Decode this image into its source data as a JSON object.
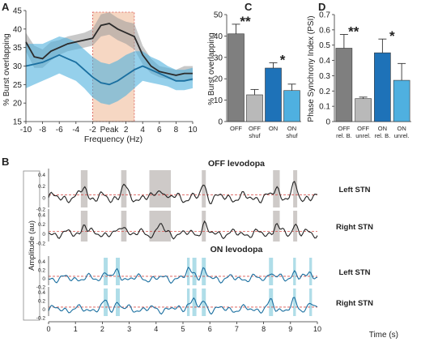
{
  "panels": {
    "A": "A",
    "B": "B",
    "C": "C",
    "D": "D"
  },
  "chart_data": [
    {
      "id": "A",
      "type": "line",
      "xlabel": "Frequency (Hz)",
      "ylabel": "% Burst overlapping",
      "xlim": [
        -10,
        10
      ],
      "ylim": [
        15,
        45
      ],
      "xticks": [
        "-10",
        "-8",
        "-6",
        "-4",
        "-2",
        "Peak",
        "2",
        "4",
        "6",
        "8",
        "10"
      ],
      "yticks": [
        "15",
        "20",
        "25",
        "30",
        "35",
        "40",
        "45"
      ],
      "highlight": {
        "x0": -2,
        "x1": 3,
        "color": "#f6d7c3"
      },
      "series": [
        {
          "color": "#2b2b2b",
          "band": "#9a9a9a",
          "x": [
            -10,
            -9,
            -8,
            -7,
            -6,
            -5,
            -4,
            -3,
            -2,
            -1,
            0,
            1,
            2,
            3,
            4,
            5,
            6,
            7,
            8,
            9,
            10
          ],
          "values": [
            36.5,
            32.5,
            32,
            34,
            35,
            36,
            36.5,
            37,
            37.5,
            41,
            41.5,
            40,
            39,
            38,
            33,
            30,
            28.5,
            28,
            27.5,
            28,
            28
          ],
          "lower": [
            34,
            29.5,
            29.5,
            31.5,
            33,
            34,
            34.5,
            35,
            35.5,
            38,
            38.5,
            37,
            36,
            34.5,
            30.5,
            28,
            27,
            26.5,
            26,
            26,
            26
          ],
          "upper": [
            39,
            35.5,
            34.5,
            36.5,
            37,
            38,
            38.5,
            39,
            40,
            44,
            44.5,
            43,
            42,
            41.5,
            35.5,
            32,
            30,
            29.5,
            29,
            30,
            30
          ]
        },
        {
          "color": "#1a6fa0",
          "band": "#4eb1dd",
          "x": [
            -10,
            -9,
            -8,
            -7,
            -6,
            -5,
            -4,
            -3,
            -2,
            -1,
            0,
            1,
            2,
            3,
            4,
            5,
            6,
            7,
            8,
            9,
            10
          ],
          "values": [
            30,
            30.5,
            31,
            32,
            33,
            32,
            31,
            29,
            27,
            25.5,
            25,
            26,
            27.5,
            29,
            30,
            29,
            28,
            27,
            26,
            26,
            26.5
          ],
          "lower": [
            24,
            25,
            26,
            27,
            28,
            27,
            26,
            24,
            21.5,
            20,
            19.5,
            20.5,
            22,
            24,
            26,
            25.5,
            25,
            24.5,
            23.5,
            23.5,
            24
          ],
          "upper": [
            36,
            36,
            36,
            37,
            38,
            37.5,
            36.5,
            34.5,
            32.5,
            31,
            30.5,
            31.5,
            33,
            34,
            34,
            32.5,
            31.5,
            30,
            29,
            29,
            29.5
          ]
        }
      ]
    },
    {
      "id": "C",
      "type": "bar",
      "ylabel": "% Burst overlapping",
      "ylim": [
        0,
        50
      ],
      "yticks": [
        "0",
        "10",
        "20",
        "30",
        "40",
        "50"
      ],
      "categories": [
        [
          "OFF"
        ],
        [
          "OFF",
          "shuf"
        ],
        [
          "ON"
        ],
        [
          "ON",
          "shuf"
        ]
      ],
      "values": [
        41,
        12.5,
        25,
        14.5
      ],
      "errors": [
        4.5,
        2.5,
        2.5,
        3
      ],
      "colors": [
        "#7f7f7f",
        "#b9b9b9",
        "#1e72b8",
        "#4fb0e0"
      ],
      "annotations": [
        {
          "text": "**",
          "between": [
            0,
            1
          ]
        },
        {
          "text": "*",
          "between": [
            2,
            3
          ]
        }
      ]
    },
    {
      "id": "D",
      "type": "bar",
      "ylabel": "Phase Synchrony Index (PSI)",
      "ylim": [
        0,
        0.7
      ],
      "yticks": [
        "0",
        "0.1",
        "0.2",
        "0.3",
        "0.4",
        "0.5",
        "0.6",
        "0.7"
      ],
      "categories": [
        [
          "OFF",
          "rel. B."
        ],
        [
          "OFF",
          "unrel."
        ],
        [
          "ON",
          "rel. B."
        ],
        [
          "ON",
          "unrel."
        ]
      ],
      "values": [
        0.48,
        0.15,
        0.45,
        0.27
      ],
      "errors": [
        0.09,
        0.01,
        0.09,
        0.11
      ],
      "colors": [
        "#7f7f7f",
        "#b9b9b9",
        "#1e72b8",
        "#4fb0e0"
      ],
      "annotations": [
        {
          "text": "**",
          "between": [
            0,
            1
          ]
        },
        {
          "text": "*",
          "between": [
            2,
            3
          ]
        }
      ]
    },
    {
      "id": "B",
      "type": "line",
      "xlabel": "Time (s)",
      "ylabel": "Amplitude (au)",
      "xlim": [
        0,
        10
      ],
      "xticks": [
        "0",
        "1",
        "2",
        "3",
        "4",
        "5",
        "6",
        "7",
        "8",
        "9",
        "10"
      ],
      "yticks": [
        "0.4",
        "0.2",
        "0",
        "-0.2"
      ],
      "groups": [
        {
          "title": "OFF levodopa",
          "color": "#222222",
          "shade": "#c9c4c2",
          "bursts": [
            [
              1.2,
              1.45
            ],
            [
              2.7,
              2.9
            ],
            [
              3.75,
              4.55
            ],
            [
              5.7,
              5.85
            ],
            [
              8.35,
              8.6
            ],
            [
              9.1,
              9.25
            ]
          ],
          "traces": [
            {
              "label": "Left STN",
              "threshold": 0.05
            },
            {
              "label": "Right STN",
              "threshold": 0.05
            }
          ]
        },
        {
          "title": "ON levodopa",
          "color": "#1a6fa0",
          "shade": "#a6d9e6",
          "bursts": [
            [
              2.05,
              2.2
            ],
            [
              2.5,
              2.65
            ],
            [
              5.15,
              5.25
            ],
            [
              5.35,
              5.5
            ],
            [
              5.7,
              5.85
            ],
            [
              8.2,
              8.35
            ],
            [
              9.1,
              9.2
            ],
            [
              9.7,
              9.8
            ]
          ],
          "traces": [
            {
              "label": "Left STN",
              "threshold": 0.05
            },
            {
              "label": "Right STN",
              "threshold": 0.05
            }
          ]
        }
      ]
    }
  ]
}
